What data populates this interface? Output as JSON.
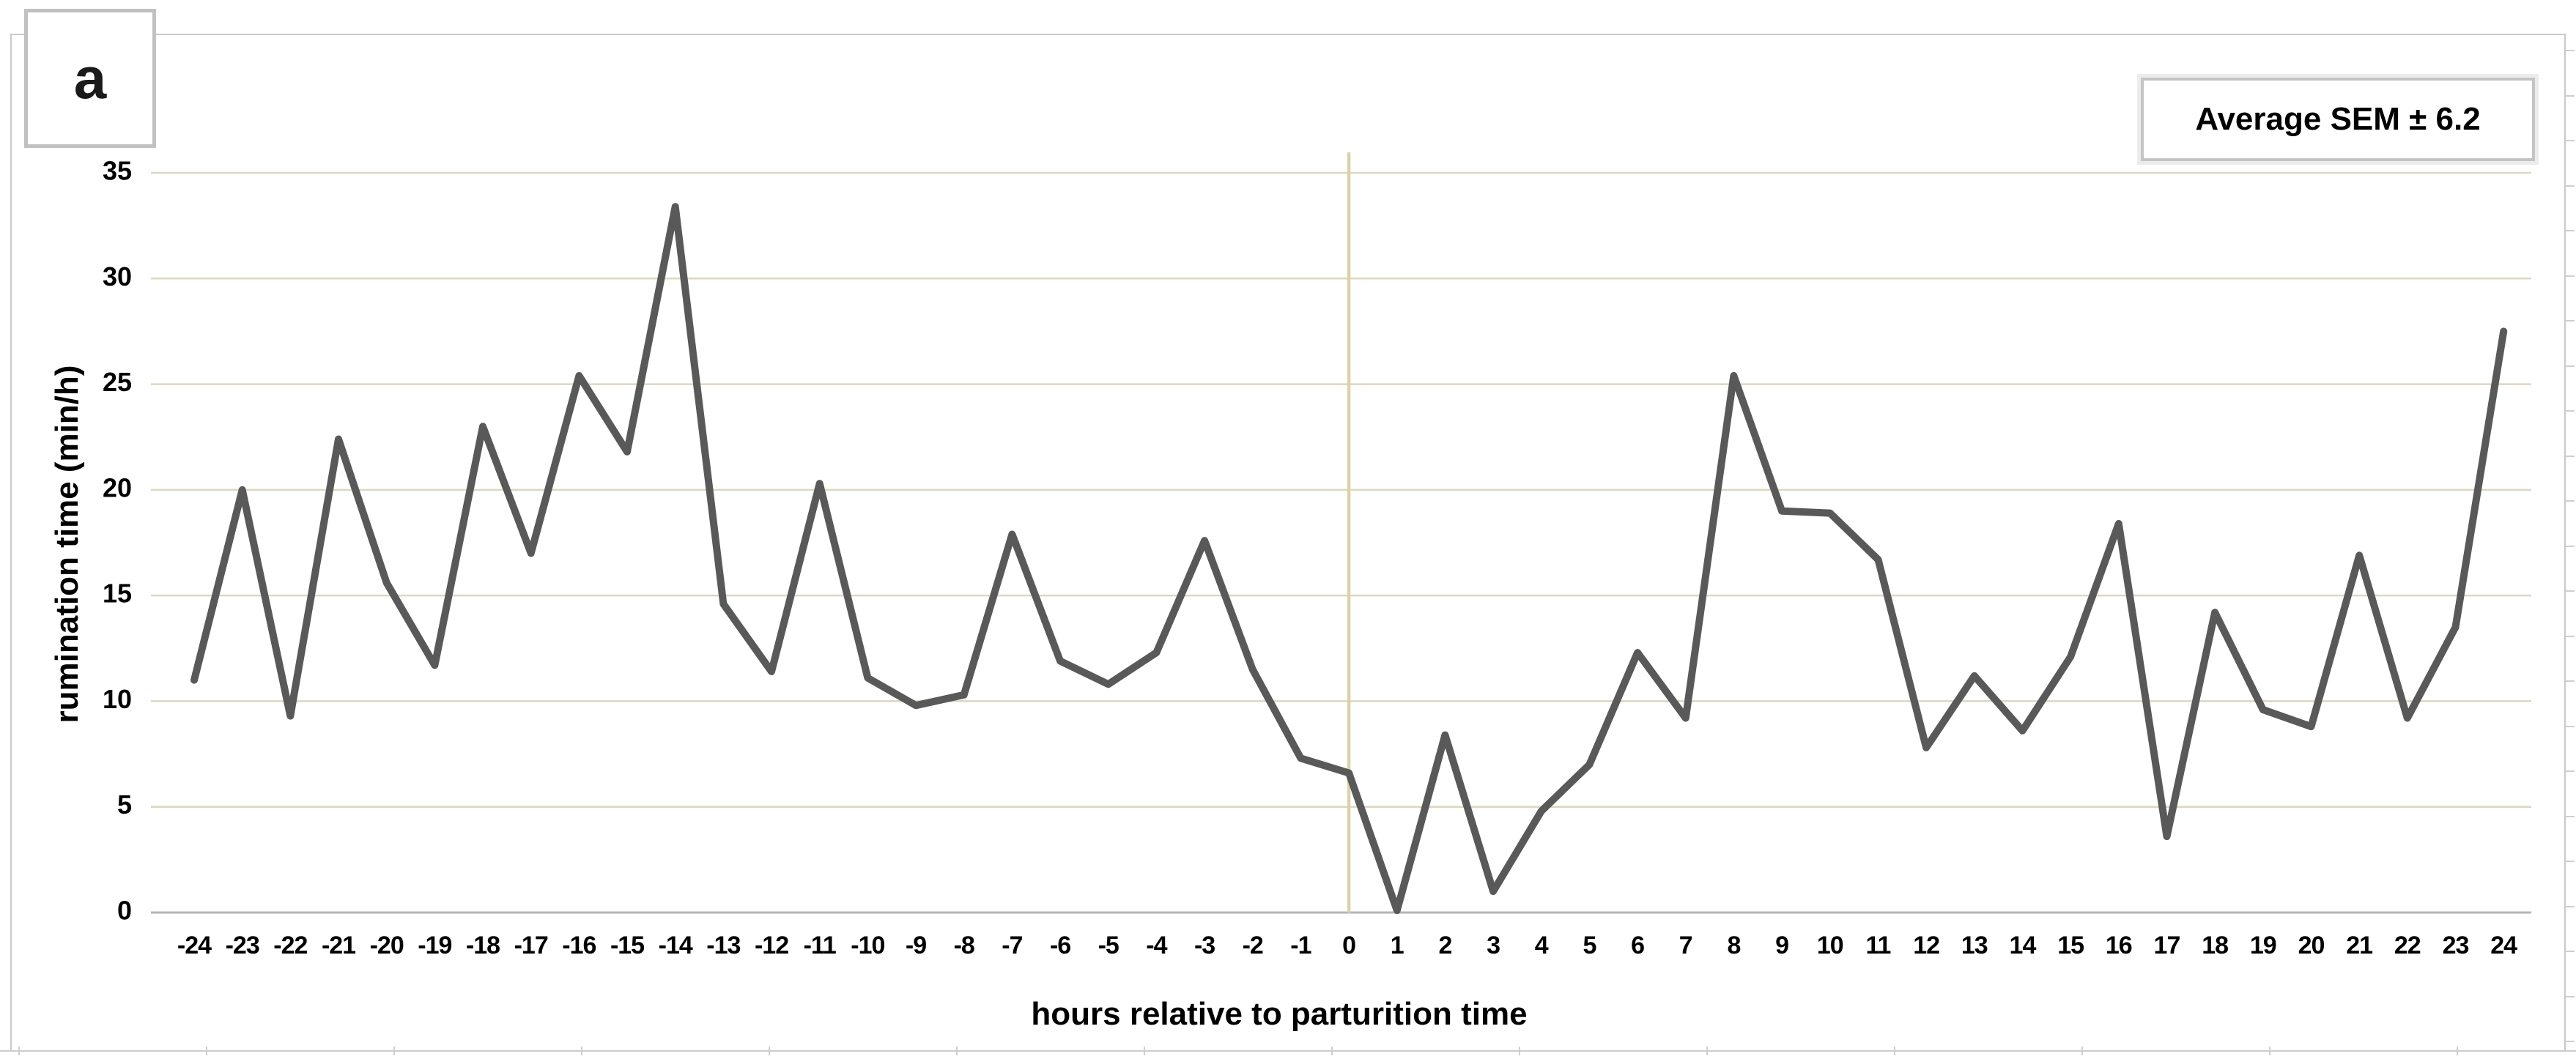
{
  "figure": {
    "panel_label": "a",
    "annotation": "Average SEM ± 6.2"
  },
  "chart_data": {
    "type": "line",
    "title": "",
    "xlabel": "hours relative to parturition time",
    "ylabel": "rumination time (min/h)",
    "x": [
      -24,
      -23,
      -22,
      -21,
      -20,
      -19,
      -18,
      -17,
      -16,
      -15,
      -14,
      -13,
      -12,
      -11,
      -10,
      -9,
      -8,
      -7,
      -6,
      -5,
      -4,
      -3,
      -2,
      -1,
      0,
      1,
      2,
      3,
      4,
      5,
      6,
      7,
      8,
      9,
      10,
      11,
      12,
      13,
      14,
      15,
      16,
      17,
      18,
      19,
      20,
      21,
      22,
      23,
      24
    ],
    "values": [
      11.0,
      20.0,
      9.3,
      22.4,
      15.6,
      11.7,
      23.0,
      17.0,
      25.4,
      21.8,
      33.4,
      14.6,
      11.4,
      20.3,
      11.1,
      9.8,
      10.3,
      17.9,
      11.9,
      10.8,
      12.3,
      17.6,
      11.5,
      7.3,
      6.6,
      0.1,
      8.4,
      1.0,
      4.8,
      7.0,
      12.3,
      9.2,
      25.4,
      19.0,
      18.9,
      16.7,
      7.8,
      11.2,
      8.6,
      12.1,
      18.4,
      3.6,
      14.2,
      9.6,
      8.8,
      16.9,
      9.2,
      13.5,
      27.5
    ],
    "ylim": [
      0,
      35
    ],
    "yticks": [
      0,
      5,
      10,
      15,
      20,
      25,
      30,
      35
    ],
    "grid": "horizontal",
    "vline_at_x": 0,
    "legend_position": "none",
    "series_color": "#595959",
    "gridline_color": "#ddd7c1",
    "zero_axis_color": "#b5b5b5",
    "vline_color": "#dcd2a8"
  }
}
